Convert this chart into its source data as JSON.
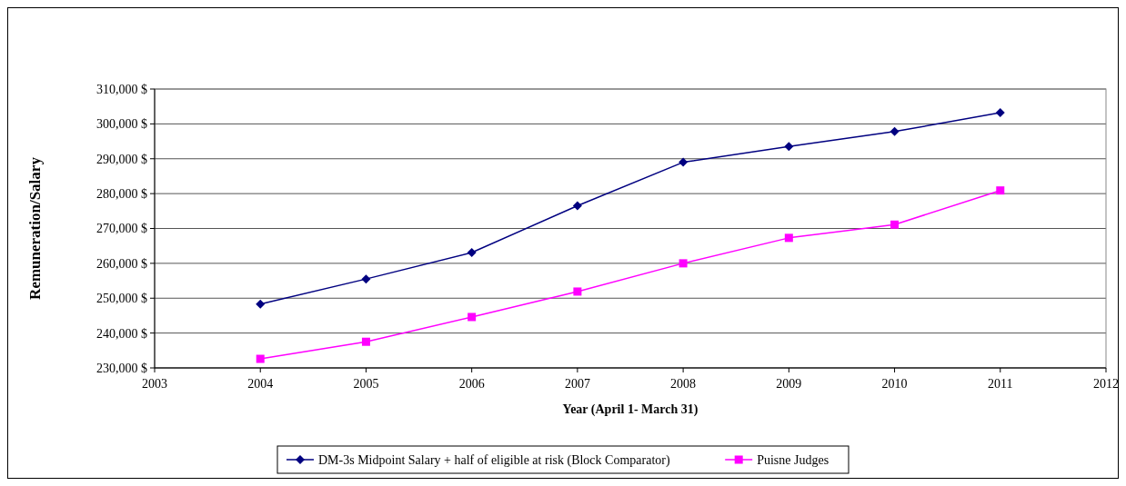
{
  "chart_data": {
    "type": "line",
    "xlabel": "Year (April 1- March 31)",
    "ylabel": "Remuneration/Salary",
    "x": [
      2004,
      2005,
      2006,
      2007,
      2008,
      2009,
      2010,
      2011
    ],
    "series": [
      {
        "name": "DM-3s Midpoint Salary + half of eligible at risk (Block Comparator)",
        "color": "#000080",
        "marker": "diamond",
        "values": [
          248300,
          255500,
          263100,
          276500,
          289000,
          293500,
          297800,
          303200
        ]
      },
      {
        "name": "Puisne Judges",
        "color": "#ff00ff",
        "marker": "square",
        "values": [
          232600,
          237500,
          244600,
          251900,
          260000,
          267300,
          271100,
          280900
        ]
      }
    ],
    "xlim": [
      2003,
      2012
    ],
    "xticks": [
      2003,
      2004,
      2005,
      2006,
      2007,
      2008,
      2009,
      2010,
      2011,
      2012
    ],
    "ylim": [
      230000,
      310000
    ],
    "yticks": [
      {
        "value": 230000,
        "label": "230,000 $"
      },
      {
        "value": 240000,
        "label": "240,000 $"
      },
      {
        "value": 250000,
        "label": "250,000 $"
      },
      {
        "value": 260000,
        "label": "260,000 $"
      },
      {
        "value": 270000,
        "label": "270,000 $"
      },
      {
        "value": 280000,
        "label": "280,000 $"
      },
      {
        "value": 290000,
        "label": "290,000 $"
      },
      {
        "value": 300000,
        "label": "300,000 $"
      },
      {
        "value": 310000,
        "label": "310,000 $"
      }
    ],
    "grid": "y",
    "legend": "bottom"
  }
}
